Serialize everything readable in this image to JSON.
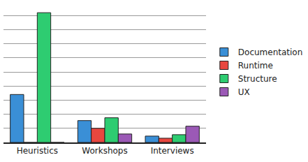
{
  "chart_data": {
    "type": "bar",
    "categories": [
      "Heuristics",
      "Workshops",
      "Interviews"
    ],
    "series": [
      {
        "name": "Documentation",
        "color": "#3a8fd6",
        "values": [
          3.4,
          1.55,
          0.45
        ]
      },
      {
        "name": "Runtime",
        "color": "#e8473f",
        "values": [
          0,
          1.0,
          0.3
        ]
      },
      {
        "name": "Structure",
        "color": "#2ecc71",
        "values": [
          9.2,
          1.75,
          0.55
        ]
      },
      {
        "name": "UX",
        "color": "#9b59b6",
        "values": [
          0,
          0.6,
          1.15
        ]
      }
    ],
    "ylim": [
      0,
      10
    ],
    "yticks": [
      0,
      1,
      2,
      3,
      4,
      5,
      6,
      7,
      8,
      9,
      10
    ],
    "grid": true,
    "legend": "right",
    "tick_labels": "x"
  }
}
